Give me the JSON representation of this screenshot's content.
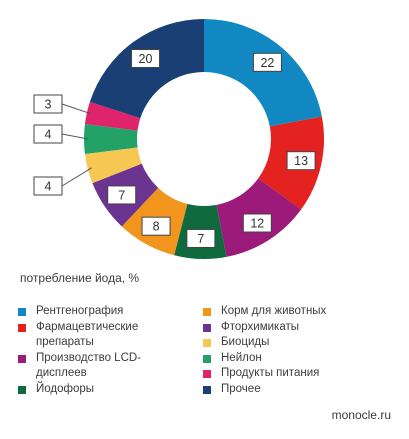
{
  "chart_data": {
    "type": "pie",
    "donut": true,
    "title": "потребление йода, %",
    "categories": [
      "Рентгенография",
      "Фармацевтические препараты",
      "Производство LCD-дисплеев",
      "Йодофоры",
      "Корм для животных",
      "Фторхимикаты",
      "Биоциды",
      "Нейлон",
      "Продукты питания",
      "Прочее"
    ],
    "values": [
      22,
      13,
      12,
      7,
      8,
      7,
      4,
      4,
      3,
      20
    ],
    "colors": [
      "#1188c2",
      "#e42320",
      "#9b1a7a",
      "#0f6b3e",
      "#f2951c",
      "#6b3491",
      "#f6c753",
      "#22a266",
      "#e0246b",
      "#1a3f74"
    ],
    "label_placement": [
      "inside",
      "inside",
      "inside",
      "inside",
      "inside",
      "inside",
      "outside",
      "outside",
      "outside",
      "inside"
    ]
  },
  "legend": {
    "col1": [
      {
        "label": "Рентгенография",
        "color": "#1188c2"
      },
      {
        "label": "Фармацевтические препараты",
        "color": "#e42320"
      },
      {
        "label": "Производство LCD-дисплеев",
        "color": "#9b1a7a"
      },
      {
        "label": "Йодофоры",
        "color": "#0f6b3e"
      }
    ],
    "col2": [
      {
        "label": "Корм для животных",
        "color": "#f2951c"
      },
      {
        "label": "Фторхимикаты",
        "color": "#6b3491"
      },
      {
        "label": "Биоциды",
        "color": "#f6c753"
      },
      {
        "label": "Нейлон",
        "color": "#22a266"
      },
      {
        "label": "Продукты питания",
        "color": "#e0246b"
      },
      {
        "label": "Прочее",
        "color": "#1a3f74"
      }
    ]
  },
  "source": "monocle.ru"
}
